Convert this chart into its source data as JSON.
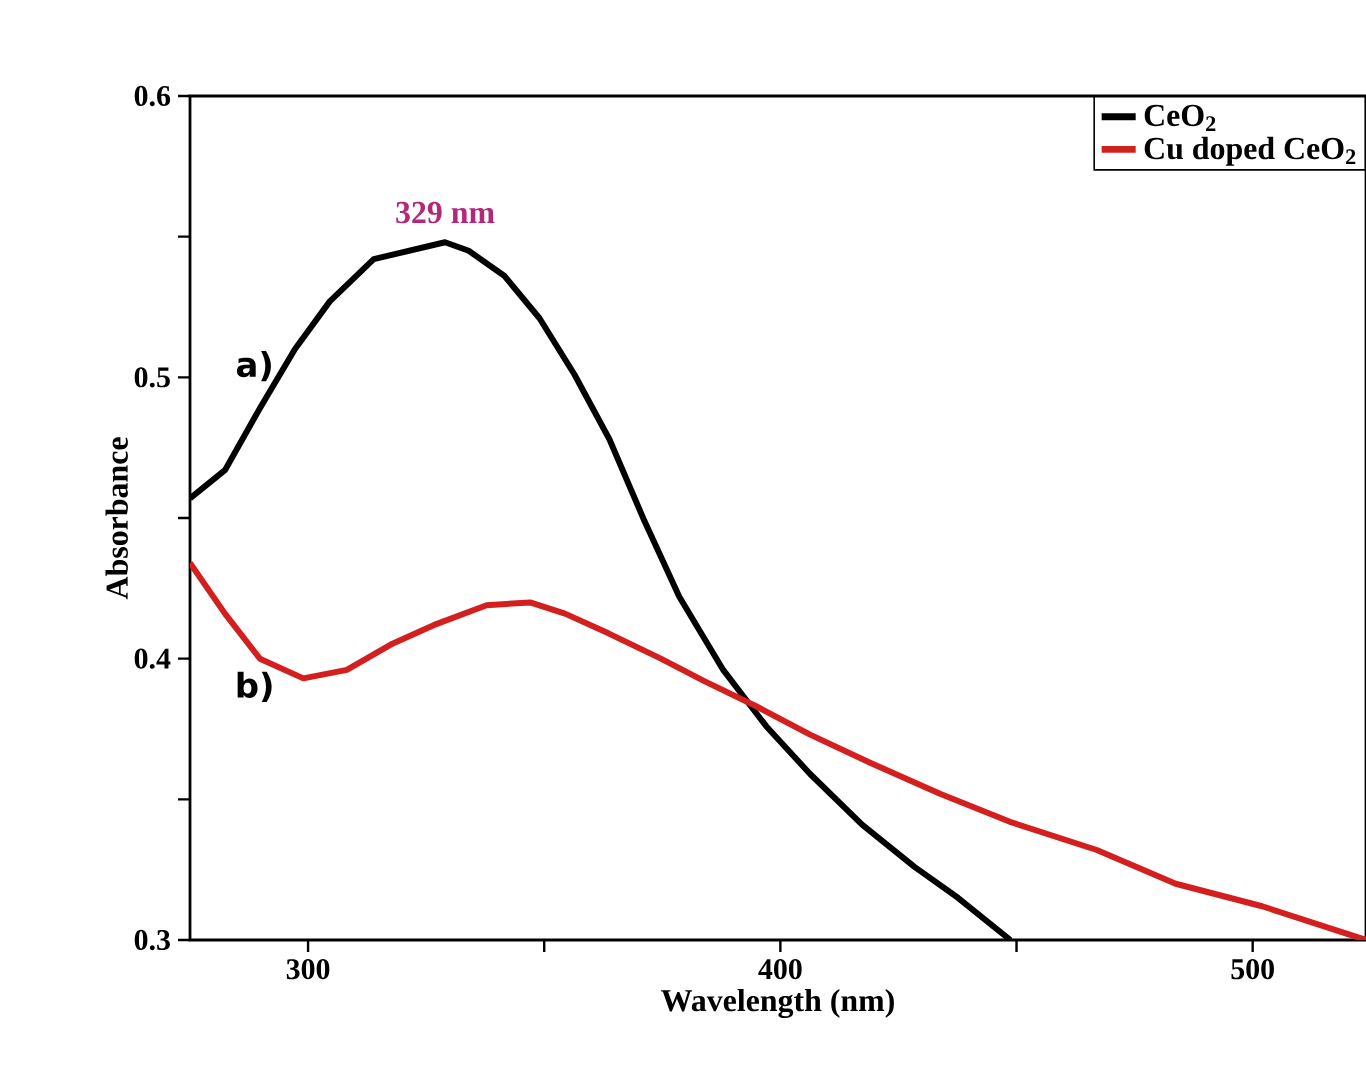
{
  "chart_data": {
    "type": "line",
    "xlabel": "Wavelength (nm)",
    "ylabel": "Absorbance",
    "xlim": [
      275,
      524
    ],
    "ylim": [
      0.3,
      0.6
    ],
    "xticks": [
      300,
      {
        "value": 350,
        "label": null
      },
      400,
      {
        "value": 450,
        "label": null
      },
      500
    ],
    "yticks": [
      0.3,
      {
        "value": 0.35,
        "label": null
      },
      0.4,
      {
        "value": 0.45,
        "label": null
      },
      0.5,
      {
        "value": 0.55,
        "label": null
      },
      0.6
    ],
    "legend": "top right",
    "grid": false,
    "marker": "none",
    "line_style": "solid",
    "series": [
      {
        "name": "CeO$_{2}$",
        "color": "#000000",
        "x": [
          275,
          282.4,
          289.8,
          297.2,
          304.6,
          313.9,
          329,
          334,
          341.6,
          349,
          356.4,
          363.8,
          371.2,
          378.6,
          387.9,
          397,
          406.3,
          417.3,
          428.4,
          437.6,
          448.7
        ],
        "values": [
          0.457,
          0.467,
          0.489,
          0.51,
          0.527,
          0.542,
          0.548,
          0.545,
          0.536,
          0.521,
          0.501,
          0.478,
          0.449,
          0.422,
          0.396,
          0.376,
          0.359,
          0.341,
          0.326,
          0.315,
          0.3
        ]
      },
      {
        "name": "Cu doped CeO$_{2}$",
        "color": "#d41f1f",
        "x": [
          275,
          282.4,
          289.8,
          299,
          308.2,
          317.5,
          326.7,
          337.8,
          347,
          354.4,
          363.6,
          374.7,
          383.9,
          395,
          406.3,
          419,
          433.8,
          448.6,
          467,
          483.7,
          502,
          524
        ],
        "values": [
          0.434,
          0.416,
          0.4,
          0.393,
          0.396,
          0.405,
          0.412,
          0.419,
          0.42,
          0.416,
          0.409,
          0.4,
          0.392,
          0.383,
          0.373,
          0.363,
          0.352,
          0.342,
          0.332,
          0.32,
          0.312,
          0.3
        ]
      }
    ],
    "annotations": [
      {
        "text": "329 nm",
        "x": 329,
        "y": 0.548
      },
      "a)",
      "b)"
    ]
  }
}
